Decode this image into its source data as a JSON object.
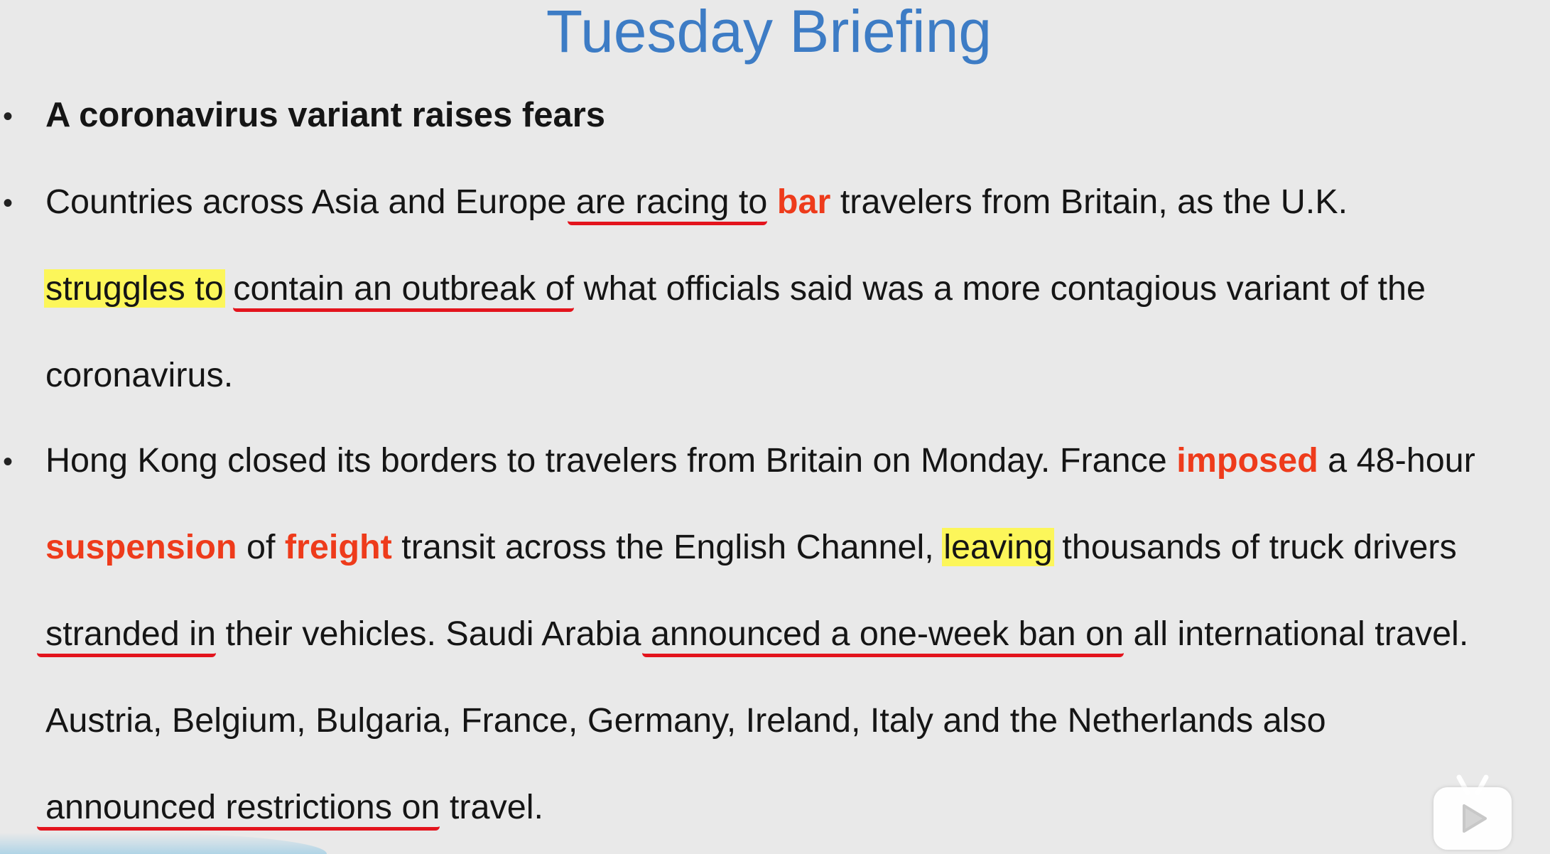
{
  "title": "Tuesday Briefing",
  "headline": "A coronavirus variant raises fears",
  "p1": {
    "l1_a": "Countries across Asia and Europe ",
    "l1_u": "are racing to",
    "l1_sp": " ",
    "l1_red": "bar",
    "l1_b": " travelers from Britain, as the U.K.",
    "l2_hl": "struggles to",
    "l2_sp": " ",
    "l2_u": "contain an outbreak of",
    "l2_b": " what officials said was a more contagious variant of the",
    "l3": "coronavirus."
  },
  "p2": {
    "l1_a": "Hong Kong closed its borders to travelers from Britain on Monday. France ",
    "l1_red": "imposed",
    "l1_b": " a 48-hour",
    "l2_red1": "suspension",
    "l2_a": " of ",
    "l2_red2": "freight",
    "l2_b": " transit across the English Channel, ",
    "l2_hl": "leaving",
    "l2_c": " thousands of truck drivers",
    "l3_u1": "stranded in",
    "l3_a": " their vehicles. Saudi Arabia ",
    "l3_u2": "announced a one-week ban on",
    "l3_b": " all international travel.",
    "l4": "Austria, Belgium, Bulgaria, France, Germany, Ireland, Italy and the Netherlands also",
    "l5_u": "announced restrictions on",
    "l5_b": " travel."
  },
  "bullet_glyph": "•",
  "colors": {
    "title": "#3d7cc5",
    "emphasis": "#ee3b1b",
    "highlight": "#fcf65a",
    "underline": "#e3141d",
    "background": "#e9e9e9"
  },
  "icons": [
    "play-logo-icon"
  ]
}
